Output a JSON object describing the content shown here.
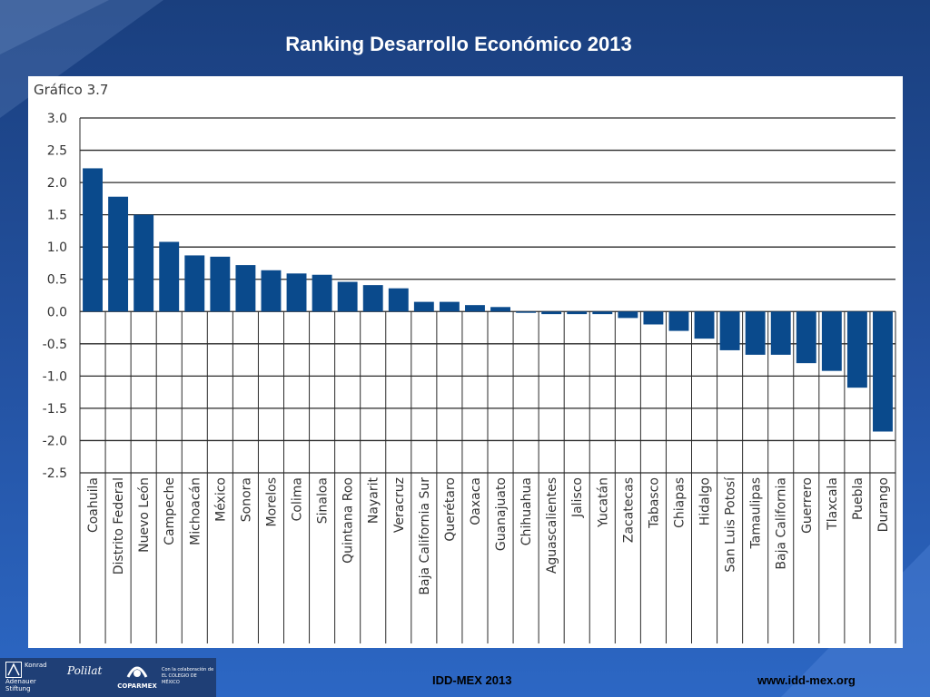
{
  "slide": {
    "title": "Ranking Desarrollo Económico 2013"
  },
  "figure": {
    "label": "Gráfico 3.7"
  },
  "footer": {
    "left_text": "IDD-MEX 2013",
    "right_text": "www.idd-mex.org",
    "logos": [
      {
        "name": "konrad-adenauer-logo",
        "text": "Konrad Adenauer Stiftung"
      },
      {
        "name": "polilat-logo",
        "text": "Polilat"
      },
      {
        "name": "coparmex-logo",
        "text": "COPARMEX"
      },
      {
        "name": "colegio-de-mexico-logo",
        "text": "Con la colaboración de EL COLEGIO DE MÉXICO"
      }
    ]
  },
  "colors": {
    "bar": "#0a4a8c",
    "background_top": "#1a3f7e",
    "background_bottom": "#2c67c4"
  },
  "chart_data": {
    "type": "bar",
    "title": "",
    "xlabel": "",
    "ylabel": "",
    "ylim": [
      -2.5,
      3.0
    ],
    "yticks": [
      "3.0",
      "2.5",
      "2.0",
      "1.5",
      "1.0",
      "0.5",
      "0.0",
      "-0.5",
      "-1.0",
      "-1.5",
      "-2.0",
      "-2.5"
    ],
    "grid": "horizontal",
    "categories": [
      "Coahuila",
      "Distrito Federal",
      "Nuevo León",
      "Campeche",
      "Michoacán",
      "México",
      "Sonora",
      "Morelos",
      "Colima",
      "Sinaloa",
      "Quintana Roo",
      "Nayarit",
      "Veracruz",
      "Baja California Sur",
      "Querétaro",
      "Oaxaca",
      "Guanajuato",
      "Chihuahua",
      "Aguascalientes",
      "Jalisco",
      "Yucatán",
      "Zacatecas",
      "Tabasco",
      "Chiapas",
      "Hidalgo",
      "San Luis Potosí",
      "Tamaulipas",
      "Baja California",
      "Guerrero",
      "Tlaxcala",
      "Puebla",
      "Durango"
    ],
    "values": [
      2.22,
      1.78,
      1.5,
      1.08,
      0.87,
      0.85,
      0.72,
      0.64,
      0.59,
      0.57,
      0.46,
      0.41,
      0.36,
      0.15,
      0.15,
      0.1,
      0.07,
      -0.02,
      -0.04,
      -0.04,
      -0.04,
      -0.1,
      -0.2,
      -0.3,
      -0.42,
      -0.6,
      -0.67,
      -0.67,
      -0.8,
      -0.92,
      -1.18,
      -1.86
    ]
  }
}
